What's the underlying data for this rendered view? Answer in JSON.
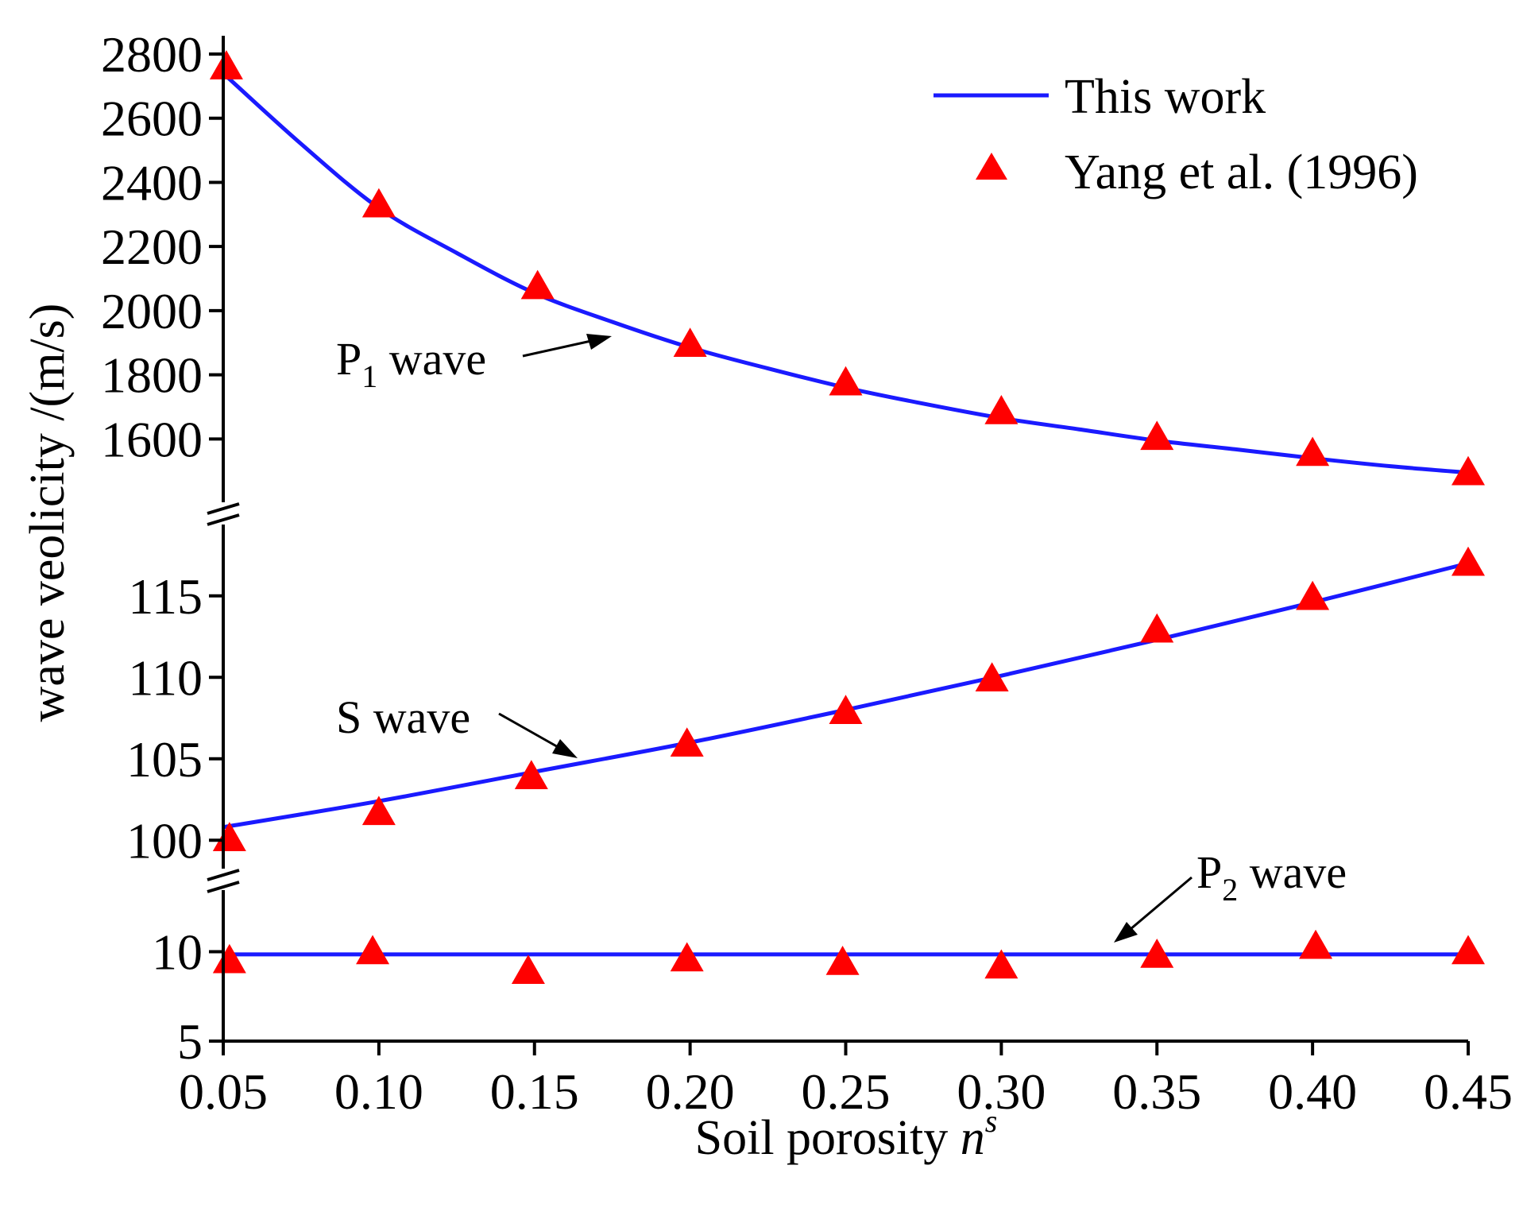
{
  "chart_data": {
    "type": "line",
    "title": "",
    "xlabel": "Soil porosity ",
    "xlabel_var": "n",
    "xlabel_sup": "s",
    "ylabel": "wave veolicity /(m/s)",
    "x_ticks": [
      "0.05",
      "0.10",
      "0.15",
      "0.20",
      "0.25",
      "0.30",
      "0.35",
      "0.40",
      "0.45"
    ],
    "xlim": [
      0.05,
      0.45
    ],
    "legend": {
      "position": "top-right",
      "line_label": "This work",
      "marker_label": "Yang et al. (1996)"
    },
    "colors": {
      "line": "#1a1aff",
      "marker": "#ff0000",
      "axis": "#000000"
    },
    "panels": [
      {
        "name": "P1",
        "ylim": [
          1420,
          2800
        ],
        "y_ticks": [
          "1600",
          "1800",
          "2000",
          "2200",
          "2400",
          "2600",
          "2800"
        ],
        "label": {
          "prefix": "P",
          "sub": "1",
          "suffix": " wave"
        },
        "line": {
          "x": [
            0.05,
            0.075,
            0.1,
            0.125,
            0.15,
            0.175,
            0.2,
            0.225,
            0.25,
            0.275,
            0.3,
            0.325,
            0.35,
            0.375,
            0.4,
            0.425,
            0.45
          ],
          "y": [
            2740,
            2520,
            2320,
            2180,
            2055,
            1965,
            1885,
            1820,
            1760,
            1710,
            1665,
            1630,
            1595,
            1568,
            1540,
            1515,
            1495
          ]
        },
        "markers": {
          "x": [
            0.051,
            0.1,
            0.151,
            0.2,
            0.25,
            0.3,
            0.35,
            0.4,
            0.45
          ],
          "y": [
            2760,
            2330,
            2075,
            1895,
            1775,
            1685,
            1605,
            1555,
            1495
          ]
        }
      },
      {
        "name": "S",
        "ylim": [
          98.5,
          118.5
        ],
        "y_ticks": [
          "100",
          "105",
          "110",
          "115"
        ],
        "label": {
          "prefix": "S",
          "sub": "",
          "suffix": " wave"
        },
        "line": {
          "x": [
            0.05,
            0.1,
            0.15,
            0.2,
            0.25,
            0.3,
            0.35,
            0.4,
            0.45
          ],
          "y": [
            100.8,
            102.4,
            104.2,
            106.0,
            108.0,
            110.1,
            112.3,
            114.6,
            117.0
          ]
        },
        "markers": {
          "x": [
            0.052,
            0.1,
            0.149,
            0.199,
            0.25,
            0.297,
            0.35,
            0.4,
            0.45
          ],
          "y": [
            100.1,
            101.7,
            103.9,
            105.9,
            107.9,
            109.9,
            112.9,
            114.9,
            117.0
          ]
        }
      },
      {
        "name": "P2",
        "ylim": [
          5,
          13
        ],
        "y_ticks": [
          "5",
          "10"
        ],
        "label": {
          "prefix": "P",
          "sub": "2",
          "suffix": " wave"
        },
        "line": {
          "x": [
            0.05,
            0.45
          ],
          "y": [
            9.85,
            9.85
          ]
        },
        "markers": {
          "x": [
            0.052,
            0.098,
            0.148,
            0.199,
            0.249,
            0.3,
            0.35,
            0.401,
            0.45
          ],
          "y": [
            9.5,
            10.0,
            8.9,
            9.6,
            9.4,
            9.2,
            9.8,
            10.3,
            10.0
          ]
        }
      }
    ]
  }
}
